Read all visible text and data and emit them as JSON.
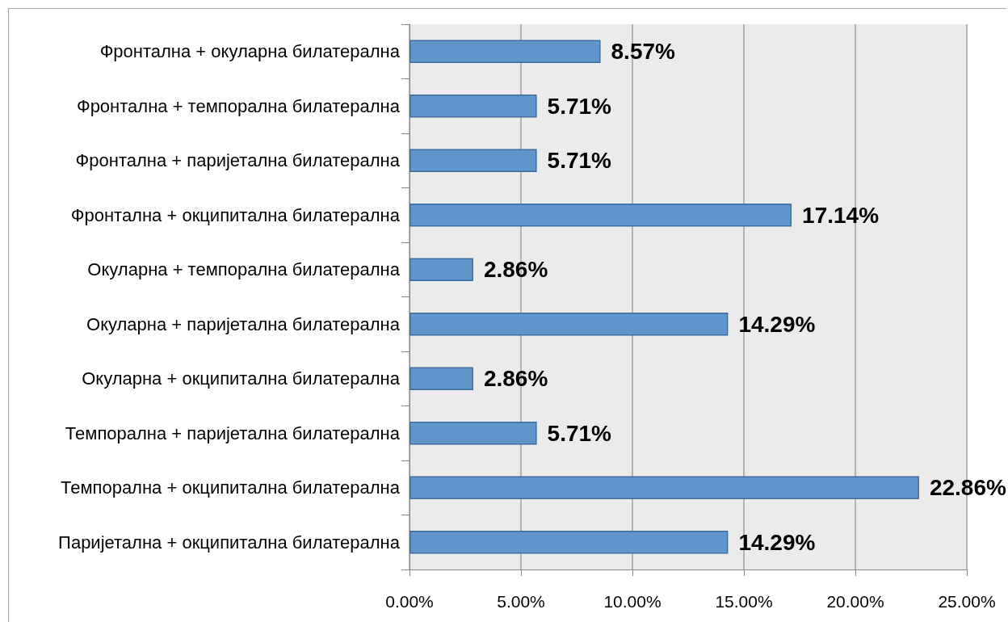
{
  "chart_data": {
    "type": "bar",
    "orientation": "horizontal",
    "categories": [
      "Фронтална + окуларна билатерална",
      "Фронтална + темпорална билатерална",
      "Фронтална + паријетална билатерална",
      "Фронтална + окципитална билатерална",
      "Окуларна + темпорална билатерална",
      "Окуларна + паријетална билатерална",
      "Окуларна + окципитална билатерална",
      "Темпорална + паријетална билатерална",
      "Темпорална + окципитална билатерална",
      "Паријетална + окципитална билатерална"
    ],
    "values": [
      8.57,
      5.71,
      5.71,
      17.14,
      2.86,
      14.29,
      2.86,
      5.71,
      22.86,
      14.29
    ],
    "value_labels": [
      "8.57%",
      "5.71%",
      "5.71%",
      "17.14%",
      "2.86%",
      "14.29%",
      "2.86%",
      "5.71%",
      "22.86%",
      "14.29%"
    ],
    "color": "#6096cb",
    "xlim": [
      0,
      25
    ],
    "xticks": [
      {
        "value": 0,
        "label": "0.00%"
      },
      {
        "value": 5,
        "label": "5.00%"
      },
      {
        "value": 10,
        "label": "10.00%"
      },
      {
        "value": 15,
        "label": "15.00%"
      },
      {
        "value": 20,
        "label": "20.00%"
      },
      {
        "value": 25,
        "label": "25.00%"
      }
    ],
    "grid": "x"
  }
}
